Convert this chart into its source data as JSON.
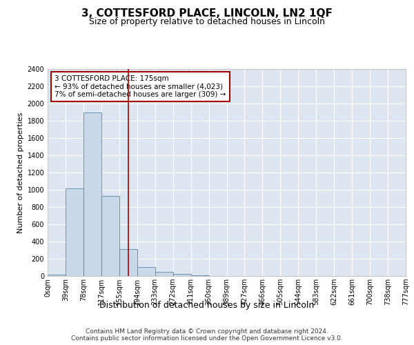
{
  "title": "3, COTTESFORD PLACE, LINCOLN, LN2 1QF",
  "subtitle": "Size of property relative to detached houses in Lincoln",
  "xlabel": "Distribution of detached houses by size in Lincoln",
  "ylabel": "Number of detached properties",
  "bin_labels": [
    "0sqm",
    "39sqm",
    "78sqm",
    "117sqm",
    "155sqm",
    "194sqm",
    "233sqm",
    "272sqm",
    "311sqm",
    "350sqm",
    "389sqm",
    "427sqm",
    "466sqm",
    "505sqm",
    "544sqm",
    "583sqm",
    "622sqm",
    "661sqm",
    "700sqm",
    "738sqm",
    "777sqm"
  ],
  "bar_values": [
    20,
    1020,
    1900,
    930,
    315,
    105,
    45,
    25,
    5,
    0,
    0,
    0,
    0,
    0,
    0,
    0,
    0,
    0,
    0,
    0
  ],
  "bar_color": "#c8d8e8",
  "bar_edge_color": "#5588aa",
  "ylim": [
    0,
    2400
  ],
  "yticks": [
    0,
    200,
    400,
    600,
    800,
    1000,
    1200,
    1400,
    1600,
    1800,
    2000,
    2200,
    2400
  ],
  "vline_color": "#aa0000",
  "annotation_text": "3 COTTESFORD PLACE: 175sqm\n← 93% of detached houses are smaller (4,023)\n7% of semi-detached houses are larger (309) →",
  "annotation_box_color": "#ffffff",
  "annotation_box_edge": "#aa0000",
  "footer_text": "Contains HM Land Registry data © Crown copyright and database right 2024.\nContains public sector information licensed under the Open Government Licence v3.0.",
  "bg_color": "#dde6f0",
  "grid_color": "#ffffff",
  "title_fontsize": 11,
  "subtitle_fontsize": 9,
  "ylabel_fontsize": 8,
  "xlabel_fontsize": 9,
  "tick_fontsize": 7,
  "footer_fontsize": 6.5
}
